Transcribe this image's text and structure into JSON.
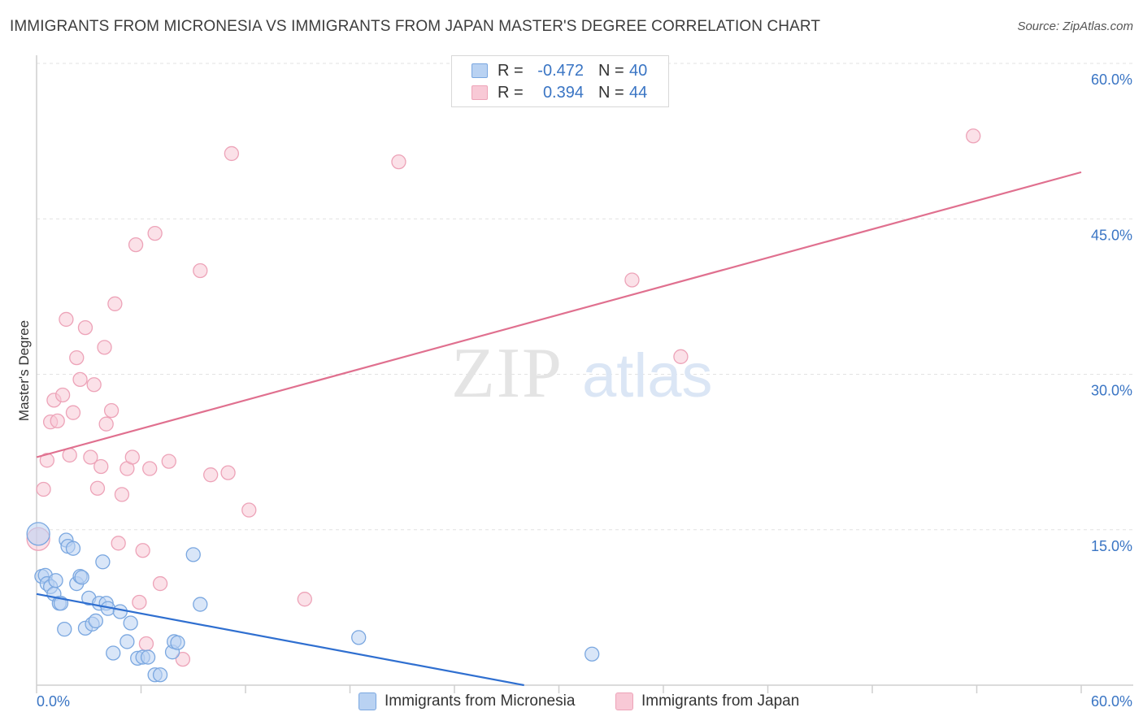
{
  "title": "IMMIGRANTS FROM MICRONESIA VS IMMIGRANTS FROM JAPAN MASTER'S DEGREE CORRELATION CHART",
  "source": "Source: ZipAtlas.com",
  "watermark": {
    "zip": "ZIP",
    "atlas": "atlas"
  },
  "legend": {
    "rows": [
      {
        "r_label": "R =",
        "r_value": "-0.472",
        "n_label": "N =",
        "n_value": "40"
      },
      {
        "r_label": "R =",
        "r_value": "0.394",
        "n_label": "N =",
        "n_value": "44"
      }
    ]
  },
  "chart_data": {
    "type": "scatter",
    "ylabel": "Master's Degree",
    "xlim": [
      0,
      60
    ],
    "ylim": [
      0,
      60
    ],
    "x_tick_labels": [
      "0.0%",
      "60.0%"
    ],
    "y_tick_values": [
      15,
      30,
      45,
      60
    ],
    "y_tick_labels": [
      "15.0%",
      "30.0%",
      "45.0%",
      "60.0%"
    ],
    "series": [
      {
        "name": "Immigrants from Micronesia",
        "color": "#7aa7e0",
        "fill": "#b9d2f2",
        "line_color": "#2f6fd0",
        "trend": {
          "x": [
            0,
            28
          ],
          "y": [
            8.8,
            0
          ]
        },
        "points": [
          [
            0.1,
            14.6
          ],
          [
            0.3,
            10.5
          ],
          [
            0.5,
            10.6
          ],
          [
            0.6,
            9.8
          ],
          [
            0.8,
            9.5
          ],
          [
            1.0,
            8.8
          ],
          [
            1.1,
            10.1
          ],
          [
            1.3,
            7.9
          ],
          [
            1.4,
            7.9
          ],
          [
            1.6,
            5.4
          ],
          [
            1.7,
            14.0
          ],
          [
            1.8,
            13.4
          ],
          [
            2.1,
            13.2
          ],
          [
            2.3,
            9.8
          ],
          [
            2.5,
            10.5
          ],
          [
            2.6,
            10.4
          ],
          [
            2.8,
            5.5
          ],
          [
            3.0,
            8.4
          ],
          [
            3.2,
            5.9
          ],
          [
            3.4,
            6.2
          ],
          [
            3.6,
            7.9
          ],
          [
            3.8,
            11.9
          ],
          [
            4.0,
            7.9
          ],
          [
            4.1,
            7.4
          ],
          [
            4.4,
            3.1
          ],
          [
            4.8,
            7.1
          ],
          [
            5.2,
            4.2
          ],
          [
            5.4,
            6.0
          ],
          [
            5.8,
            2.6
          ],
          [
            6.1,
            2.7
          ],
          [
            6.4,
            2.7
          ],
          [
            6.8,
            1.0
          ],
          [
            7.1,
            1.0
          ],
          [
            7.8,
            3.2
          ],
          [
            7.9,
            4.2
          ],
          [
            8.1,
            4.1
          ],
          [
            9.0,
            12.6
          ],
          [
            9.4,
            7.8
          ],
          [
            18.5,
            4.6
          ],
          [
            31.9,
            3.0
          ]
        ]
      },
      {
        "name": "Immigrants from Japan",
        "color": "#eda3b8",
        "fill": "#f8c9d6",
        "line_color": "#e0708f",
        "trend": {
          "x": [
            0,
            60
          ],
          "y": [
            22.0,
            49.5
          ]
        },
        "points": [
          [
            0.1,
            14.1
          ],
          [
            0.4,
            18.9
          ],
          [
            0.6,
            21.7
          ],
          [
            0.8,
            25.4
          ],
          [
            1.0,
            27.5
          ],
          [
            1.2,
            25.5
          ],
          [
            1.5,
            28.0
          ],
          [
            1.7,
            35.3
          ],
          [
            1.9,
            22.2
          ],
          [
            2.1,
            26.3
          ],
          [
            2.3,
            31.6
          ],
          [
            2.5,
            29.5
          ],
          [
            2.8,
            34.5
          ],
          [
            3.1,
            22.0
          ],
          [
            3.3,
            29.0
          ],
          [
            3.5,
            19.0
          ],
          [
            3.7,
            21.1
          ],
          [
            3.9,
            32.6
          ],
          [
            4.0,
            25.2
          ],
          [
            4.3,
            26.5
          ],
          [
            4.5,
            36.8
          ],
          [
            4.7,
            13.7
          ],
          [
            4.9,
            18.4
          ],
          [
            5.2,
            20.9
          ],
          [
            5.5,
            22.0
          ],
          [
            5.7,
            42.5
          ],
          [
            5.9,
            8.0
          ],
          [
            6.1,
            13.0
          ],
          [
            6.3,
            4.0
          ],
          [
            6.5,
            20.9
          ],
          [
            6.8,
            43.6
          ],
          [
            7.1,
            9.8
          ],
          [
            7.6,
            21.6
          ],
          [
            8.4,
            2.5
          ],
          [
            9.4,
            40.0
          ],
          [
            10.0,
            20.3
          ],
          [
            11.0,
            20.5
          ],
          [
            11.2,
            51.3
          ],
          [
            12.2,
            16.9
          ],
          [
            15.4,
            8.3
          ],
          [
            20.8,
            50.5
          ],
          [
            34.2,
            39.1
          ],
          [
            37.0,
            31.7
          ],
          [
            53.8,
            53.0
          ]
        ]
      }
    ]
  }
}
